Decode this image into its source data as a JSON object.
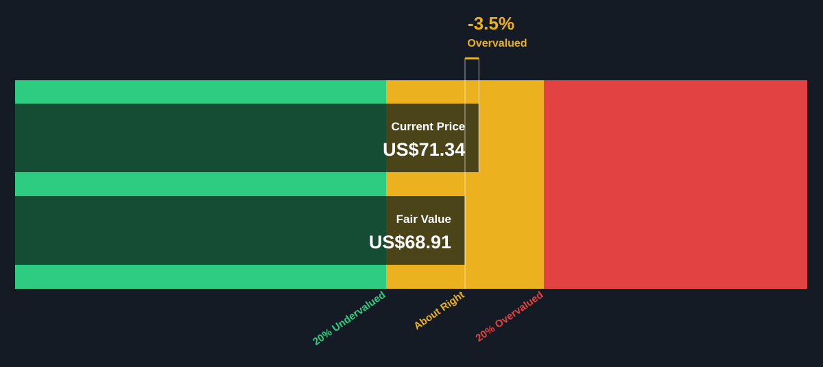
{
  "chart_data": {
    "type": "valuation",
    "categories": [
      "Current Price",
      "Fair Value"
    ],
    "values": [
      71.34,
      68.91
    ],
    "value_labels": [
      "US$71.34",
      "US$68.91"
    ],
    "annotation": {
      "value": "-3.5%",
      "label": "Overvalued"
    },
    "zones": [
      "20% Undervalued",
      "About Right",
      "20% Overvalued"
    ],
    "colors": {
      "undervalued": "#2ecc80",
      "about_right": "#ecb11f",
      "overvalued": "#e34242"
    }
  }
}
